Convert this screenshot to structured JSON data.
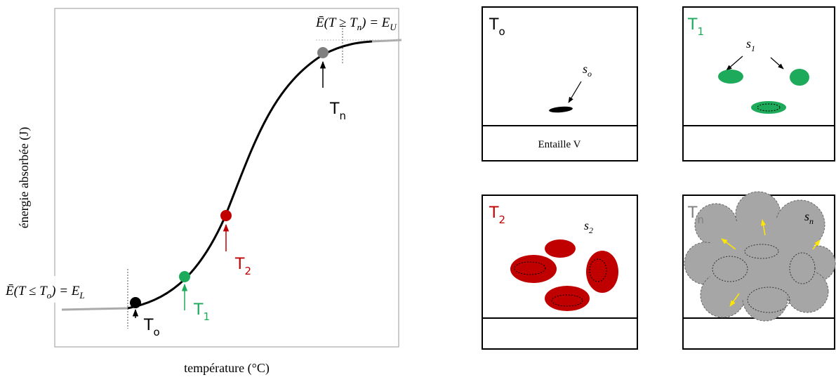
{
  "chart": {
    "y_axis_label": "énergie absorbée (J)",
    "x_axis_label": "température (°C)",
    "upper_equation": [
      "Ē(T ≥ T",
      "n",
      ") = E",
      "U"
    ],
    "lower_equation": [
      "Ē(T ≤ T",
      "o",
      ") = E",
      "L"
    ],
    "points": [
      {
        "label": "T",
        "sub": "o"
      },
      {
        "label": "T",
        "sub": "1"
      },
      {
        "label": "T",
        "sub": "2"
      },
      {
        "label": "T",
        "sub": "n"
      }
    ]
  },
  "panels": [
    {
      "label": "T",
      "sub": "o",
      "site": "s",
      "site_sub": "o",
      "footer": "Entaille V"
    },
    {
      "label": "T",
      "sub": "1",
      "site": "s",
      "site_sub": "1"
    },
    {
      "label": "T",
      "sub": "2",
      "site": "s",
      "site_sub": "2"
    },
    {
      "label": "T",
      "sub": "n",
      "site": "s",
      "site_sub": "n"
    }
  ]
}
